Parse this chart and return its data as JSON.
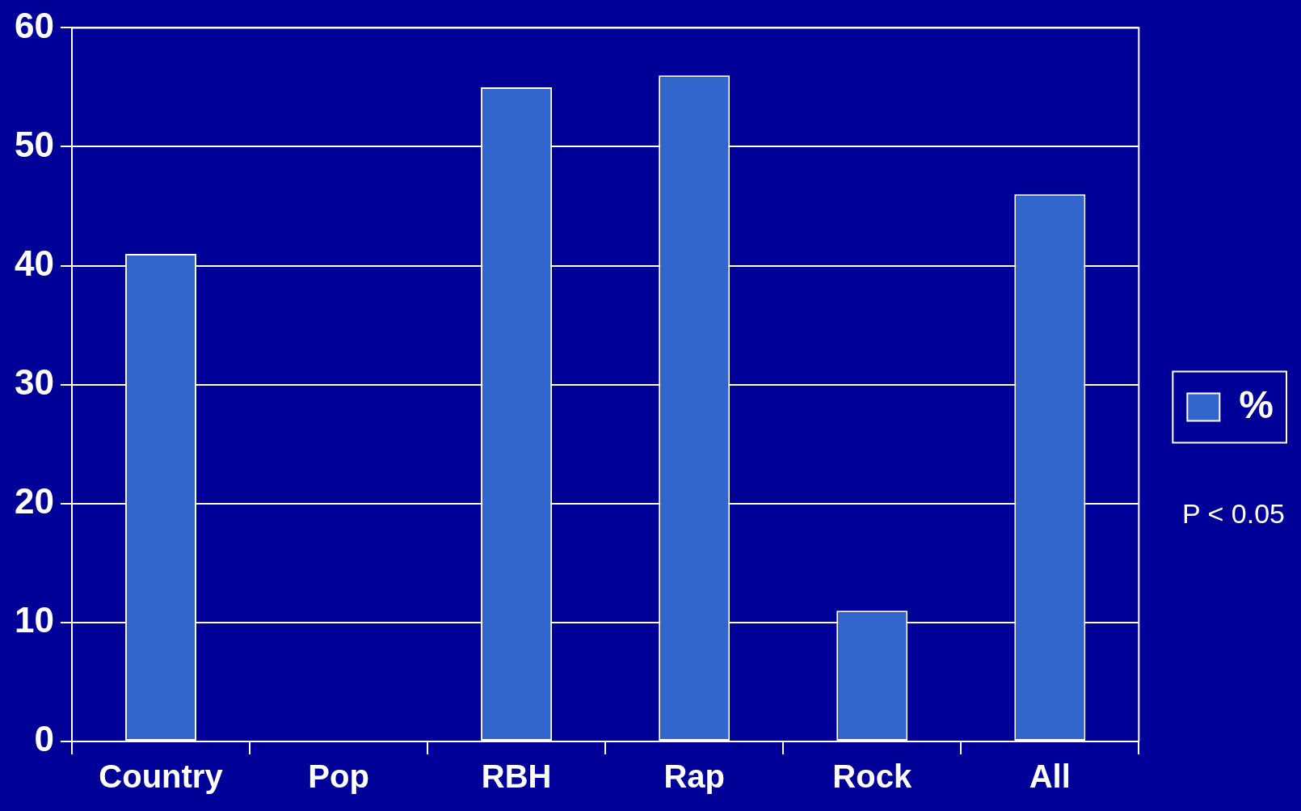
{
  "chart_data": {
    "type": "bar",
    "categories": [
      "Country",
      "Pop",
      "RBH",
      "Rap",
      "Rock",
      "All"
    ],
    "series": [
      {
        "name": "%",
        "color": "#3366cc",
        "values": [
          41,
          0,
          55,
          56,
          11,
          46
        ]
      }
    ],
    "ylim": [
      0,
      60
    ],
    "yticks": [
      0,
      10,
      20,
      30,
      40,
      50,
      60
    ],
    "grid": "y",
    "legend": "right",
    "annotations": [
      "P < 0.05"
    ]
  }
}
